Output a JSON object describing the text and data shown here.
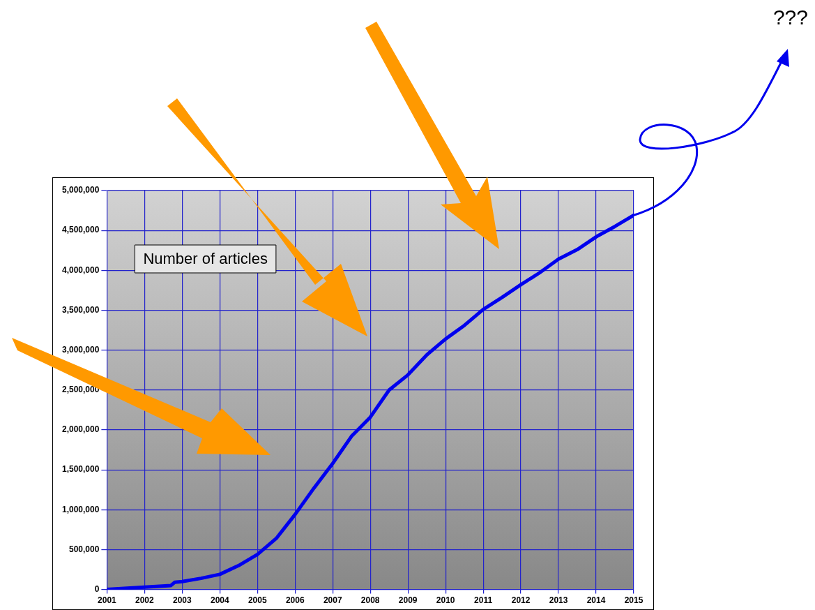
{
  "chart_data": {
    "type": "line",
    "title": "Number of articles",
    "x": [
      2001,
      2002,
      2002.7,
      2002.8,
      2003,
      2003.5,
      2004,
      2004.5,
      2005,
      2005.5,
      2006,
      2006.5,
      2007,
      2007.5,
      2008,
      2008.5,
      2009,
      2009.5,
      2010,
      2010.5,
      2011,
      2011.5,
      2012,
      2012.5,
      2013,
      2013.5,
      2014,
      2014.5,
      2015
    ],
    "series": [
      {
        "color": "#0000ee",
        "values": [
          0,
          30000,
          50000,
          90000,
          100000,
          140000,
          190000,
          300000,
          440000,
          640000,
          940000,
          1270000,
          1580000,
          1920000,
          2160000,
          2500000,
          2690000,
          2940000,
          3140000,
          3310000,
          3510000,
          3660000,
          3820000,
          3970000,
          4140000,
          4260000,
          4420000,
          4550000,
          4690000
        ]
      }
    ],
    "xlim": [
      2001,
      2015
    ],
    "xticks": [
      2001,
      2002,
      2003,
      2004,
      2005,
      2006,
      2007,
      2008,
      2009,
      2010,
      2011,
      2012,
      2013,
      2014,
      2015
    ],
    "ylim": [
      0,
      5000000
    ],
    "yticks": [
      {
        "value": 0,
        "label": "0"
      },
      {
        "value": 500000,
        "label": "500,000"
      },
      {
        "value": 1000000,
        "label": "1,000,000"
      },
      {
        "value": 1500000,
        "label": "1,500,000"
      },
      {
        "value": 2000000,
        "label": "2,000,000"
      },
      {
        "value": 2500000,
        "label": "2,500,000"
      },
      {
        "value": 3000000,
        "label": "3,000,000"
      },
      {
        "value": 3500000,
        "label": "3,500,000"
      },
      {
        "value": 4000000,
        "label": "4,000,000"
      },
      {
        "value": 4500000,
        "label": "4,500,000"
      },
      {
        "value": 5000000,
        "label": "5,000,000"
      }
    ],
    "grid": true,
    "annotations": [
      "???"
    ]
  }
}
